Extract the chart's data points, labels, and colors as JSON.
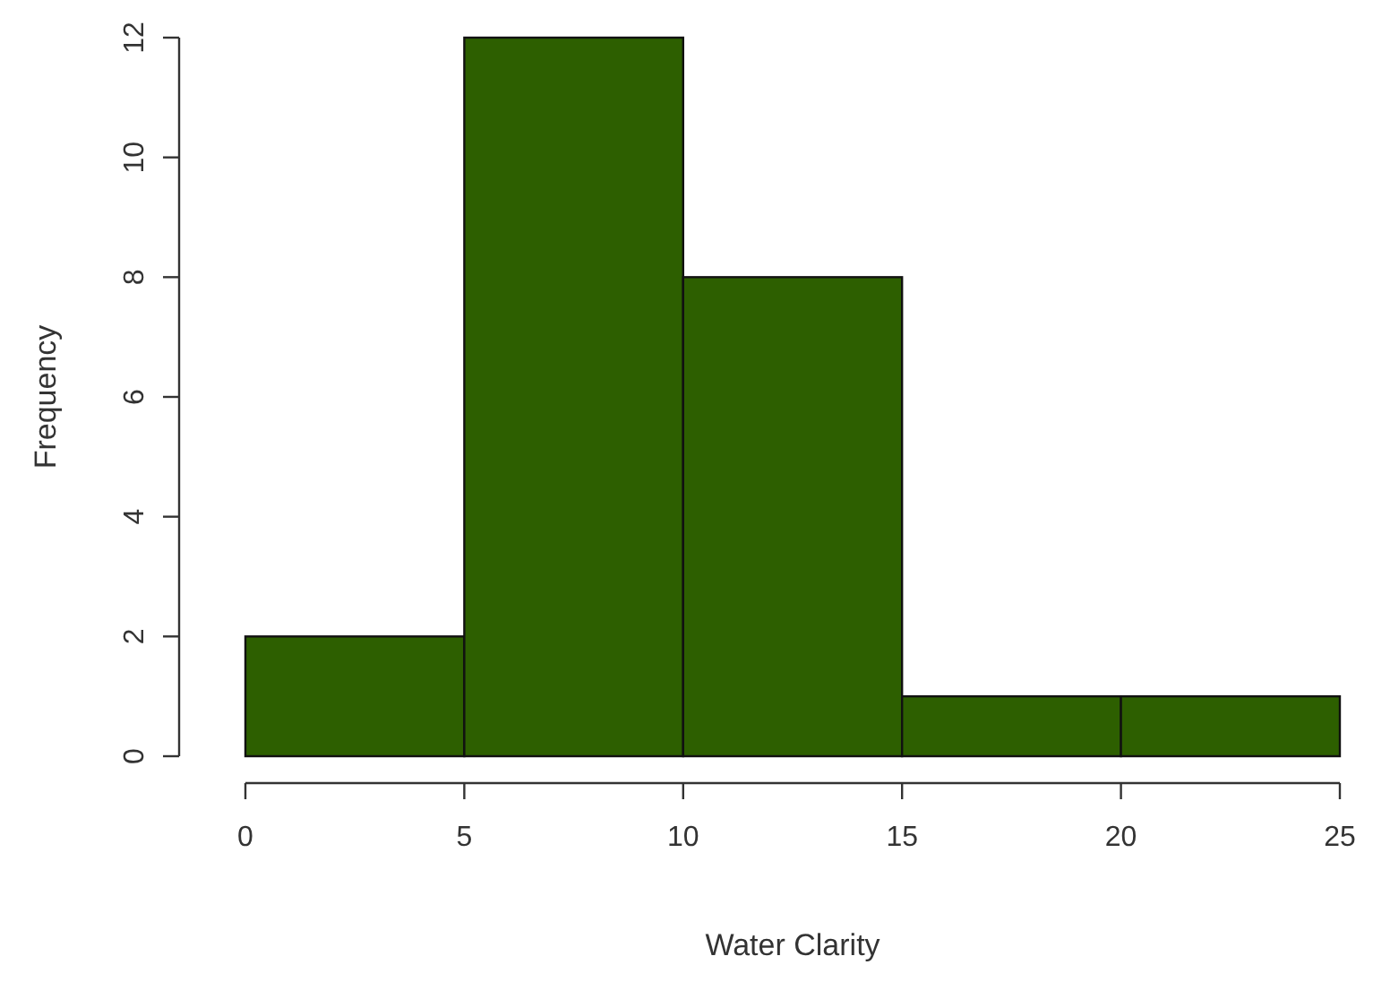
{
  "chart_data": {
    "type": "histogram",
    "xlabel": "Water Clarity",
    "ylabel": "Frequency",
    "bins": [
      0,
      5,
      10,
      15,
      20,
      25
    ],
    "values": [
      2,
      12,
      8,
      1,
      1
    ],
    "color": "#2d5f00",
    "xlim": [
      0,
      25
    ],
    "xticks": [
      0,
      5,
      10,
      15,
      20,
      25
    ],
    "ylim": [
      0,
      12
    ],
    "yticks": [
      0,
      2,
      4,
      6,
      8,
      10,
      12
    ]
  }
}
